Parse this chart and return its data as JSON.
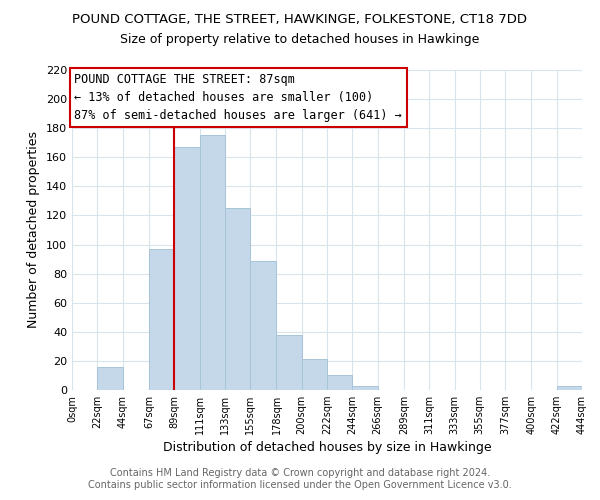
{
  "title": "POUND COTTAGE, THE STREET, HAWKINGE, FOLKESTONE, CT18 7DD",
  "subtitle": "Size of property relative to detached houses in Hawkinge",
  "xlabel": "Distribution of detached houses by size in Hawkinge",
  "ylabel": "Number of detached properties",
  "bar_color": "#c5d8ea",
  "bar_edge_color": "#a8c4d8",
  "bin_edges": [
    0,
    22,
    44,
    67,
    89,
    111,
    133,
    155,
    178,
    200,
    222,
    244,
    266,
    289,
    311,
    333,
    355,
    377,
    400,
    422,
    444
  ],
  "bin_labels": [
    "0sqm",
    "22sqm",
    "44sqm",
    "67sqm",
    "89sqm",
    "111sqm",
    "133sqm",
    "155sqm",
    "178sqm",
    "200sqm",
    "222sqm",
    "244sqm",
    "266sqm",
    "289sqm",
    "311sqm",
    "333sqm",
    "355sqm",
    "377sqm",
    "400sqm",
    "422sqm",
    "444sqm"
  ],
  "counts": [
    0,
    16,
    0,
    97,
    167,
    175,
    125,
    89,
    38,
    21,
    10,
    3,
    0,
    0,
    0,
    0,
    0,
    0,
    0,
    3
  ],
  "ylim": [
    0,
    220
  ],
  "yticks": [
    0,
    20,
    40,
    60,
    80,
    100,
    120,
    140,
    160,
    180,
    200,
    220
  ],
  "vline_x": 89,
  "annotation_title": "POUND COTTAGE THE STREET: 87sqm",
  "annotation_line1": "← 13% of detached houses are smaller (100)",
  "annotation_line2": "87% of semi-detached houses are larger (641) →",
  "footer1": "Contains HM Land Registry data © Crown copyright and database right 2024.",
  "footer2": "Contains public sector information licensed under the Open Government Licence v3.0.",
  "grid_color": "#d8e4ec",
  "annotation_border_color": "#cc0000",
  "title_fontsize": 9.5,
  "subtitle_fontsize": 9,
  "ylabel_fontsize": 9,
  "xlabel_fontsize": 9,
  "ytick_fontsize": 8,
  "xtick_fontsize": 7,
  "footer_fontsize": 7,
  "annotation_fontsize": 8.5
}
